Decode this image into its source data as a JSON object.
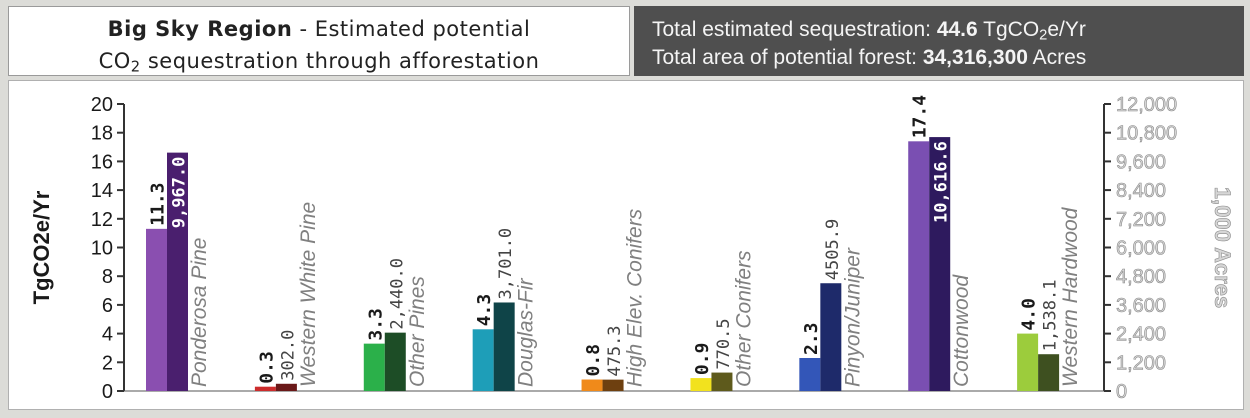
{
  "header": {
    "title_region": "Big Sky Region",
    "title_rest": " - Estimated potential",
    "title_line2_pre": "CO",
    "title_line2_sub": "2",
    "title_line2_post": " sequestration through afforestation"
  },
  "totals": {
    "seq_label": "Total estimated sequestration: ",
    "seq_value": "44.6",
    "seq_unit_pre": " TgCO",
    "seq_unit_sub": "2",
    "seq_unit_post": "e/Yr",
    "area_label": "Total area of potential forest: ",
    "area_value": "34,316,300",
    "area_unit": " Acres"
  },
  "chart_data": {
    "type": "bar",
    "ylabel_left": "TgCO2e/Yr",
    "ylabel_right": "1,000 Acres",
    "ylim_left": [
      0,
      20
    ],
    "ylim_right": [
      0,
      12000
    ],
    "left_ticks": [
      "0",
      "2",
      "4",
      "6",
      "8",
      "10",
      "12",
      "14",
      "16",
      "18",
      "20"
    ],
    "right_ticks": [
      "0",
      "1,200",
      "2,400",
      "3,600",
      "4,800",
      "6,000",
      "7,200",
      "8,400",
      "9,600",
      "10,800",
      "12,000"
    ],
    "categories": [
      "Ponderosa Pine",
      "Western White Pine",
      "Other Pines",
      "Douglas-Fir",
      "High Elev. Conifers",
      "Other Conifers",
      "Pinyon/Juniper",
      "Cottonwood",
      "Western Hardwood"
    ],
    "series": [
      {
        "axis": "left",
        "values": [
          11.3,
          0.3,
          3.3,
          4.3,
          0.8,
          0.9,
          2.3,
          17.4,
          4.0
        ],
        "labels": [
          "11.3",
          "0.3",
          "3.3",
          "4.3",
          "0.8",
          "0.9",
          "2.3",
          "17.4",
          "4.0"
        ],
        "colors": [
          "#8a4fb0",
          "#cc2c2c",
          "#2bb04a",
          "#1e9eb8",
          "#f08a1a",
          "#f2e21e",
          "#3356b8",
          "#7a4fb2",
          "#9ccc3c"
        ]
      },
      {
        "axis": "right",
        "values": [
          9967.0,
          302.0,
          2440.0,
          3701.0,
          475.3,
          770.5,
          4505.9,
          10616.6,
          1538.1
        ],
        "labels": [
          "9,967.0",
          "302.0",
          "2,440.0",
          "3,701.0",
          "475.3",
          "770.5",
          "4505.9",
          "10,616.6",
          "1,538.1"
        ],
        "colors": [
          "#4a1f6e",
          "#6a1818",
          "#1d4d26",
          "#0f4448",
          "#6e4010",
          "#5e5a1c",
          "#1e2a6a",
          "#2e1a5e",
          "#3e5020"
        ]
      }
    ]
  }
}
